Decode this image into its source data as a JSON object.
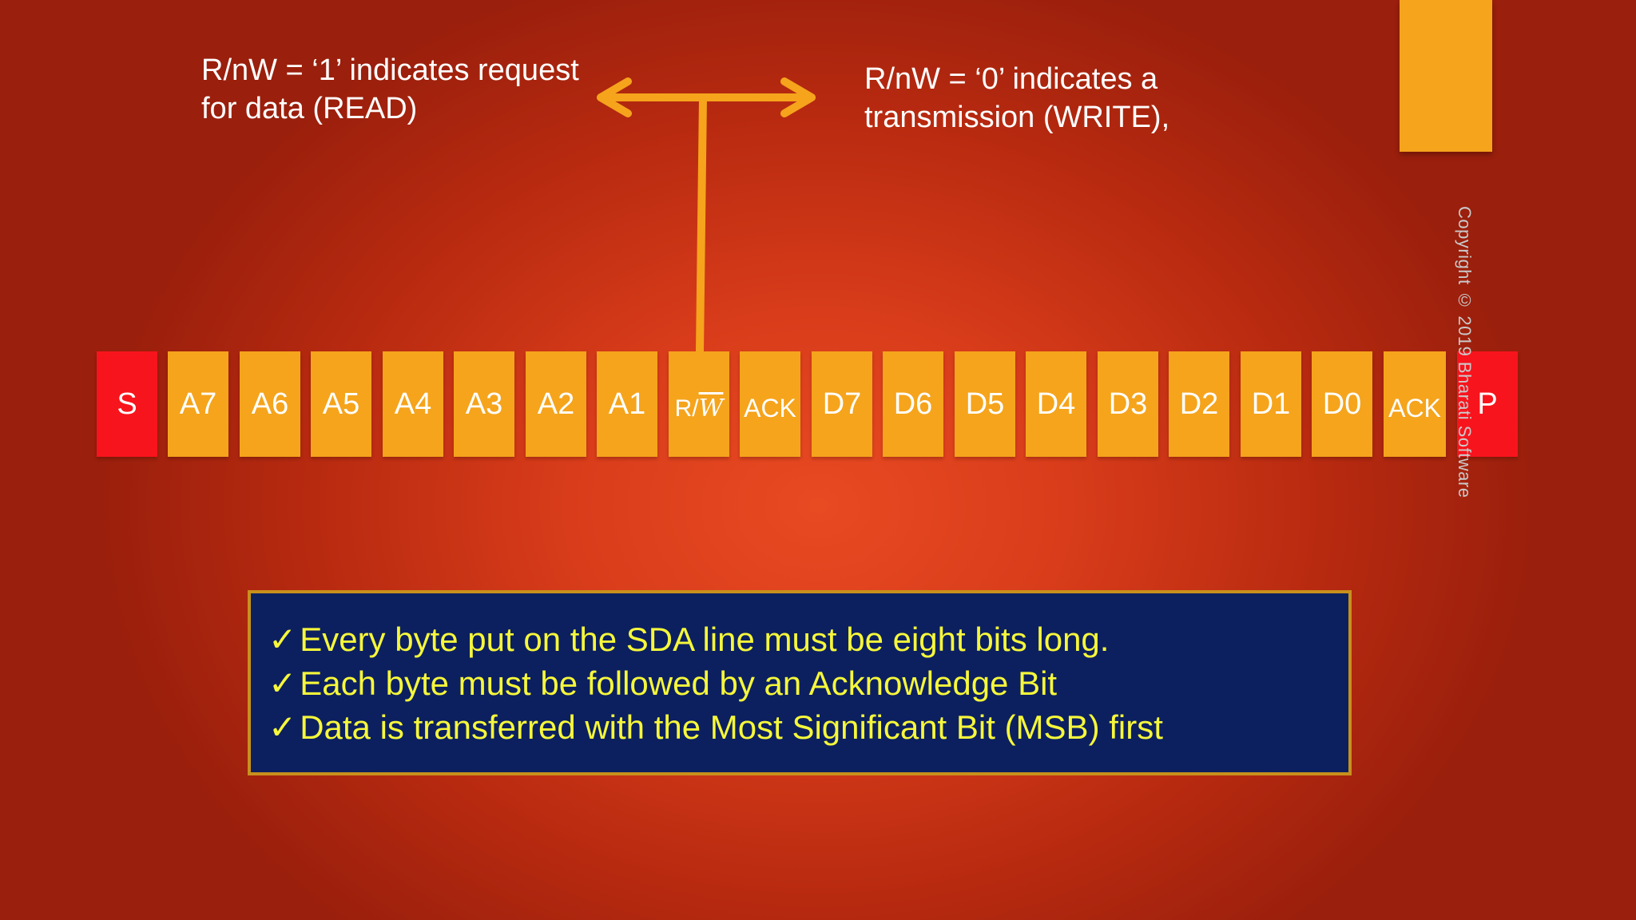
{
  "notes": {
    "read": [
      "R/nW = ‘1’ indicates request",
      "for data (READ)"
    ],
    "write": [
      "R/nW = ‘0’ indicates a",
      "transmission (WRITE),"
    ]
  },
  "frame": [
    {
      "label": "S",
      "color": "#f8141c"
    },
    {
      "label": "A7",
      "color": "#f5a41c"
    },
    {
      "label": "A6",
      "color": "#f5a41c"
    },
    {
      "label": "A5",
      "color": "#f5a41c"
    },
    {
      "label": "A4",
      "color": "#f5a41c"
    },
    {
      "label": "A3",
      "color": "#f5a41c"
    },
    {
      "label": "A2",
      "color": "#f5a41c"
    },
    {
      "label": "A1",
      "color": "#f5a41c"
    },
    {
      "label": "R/",
      "label_suffix": "W",
      "color": "#f5a41c"
    },
    {
      "label": "ACK",
      "color": "#f5a41c"
    },
    {
      "label": "D7",
      "color": "#f5a41c"
    },
    {
      "label": "D6",
      "color": "#f5a41c"
    },
    {
      "label": "D5",
      "color": "#f5a41c"
    },
    {
      "label": "D4",
      "color": "#f5a41c"
    },
    {
      "label": "D3",
      "color": "#f5a41c"
    },
    {
      "label": "D2",
      "color": "#f5a41c"
    },
    {
      "label": "D1",
      "color": "#f5a41c"
    },
    {
      "label": "D0",
      "color": "#f5a41c"
    },
    {
      "label": "ACK",
      "color": "#f5a41c"
    },
    {
      "label": "P",
      "color": "#f8141c"
    }
  ],
  "bullets": {
    "check": "✓",
    "items": [
      "Every byte put on the SDA line must be eight bits long.",
      "Each byte must be followed by an Acknowledge Bit",
      "Data is transferred with the Most Significant Bit (MSB) first"
    ]
  },
  "copyright": "Copyright © 2019 Bharati Software",
  "colors": {
    "accent": "#f5a41c",
    "start_stop": "#f8141c",
    "box_bg": "#0c2060",
    "box_text": "#f6f73a"
  }
}
